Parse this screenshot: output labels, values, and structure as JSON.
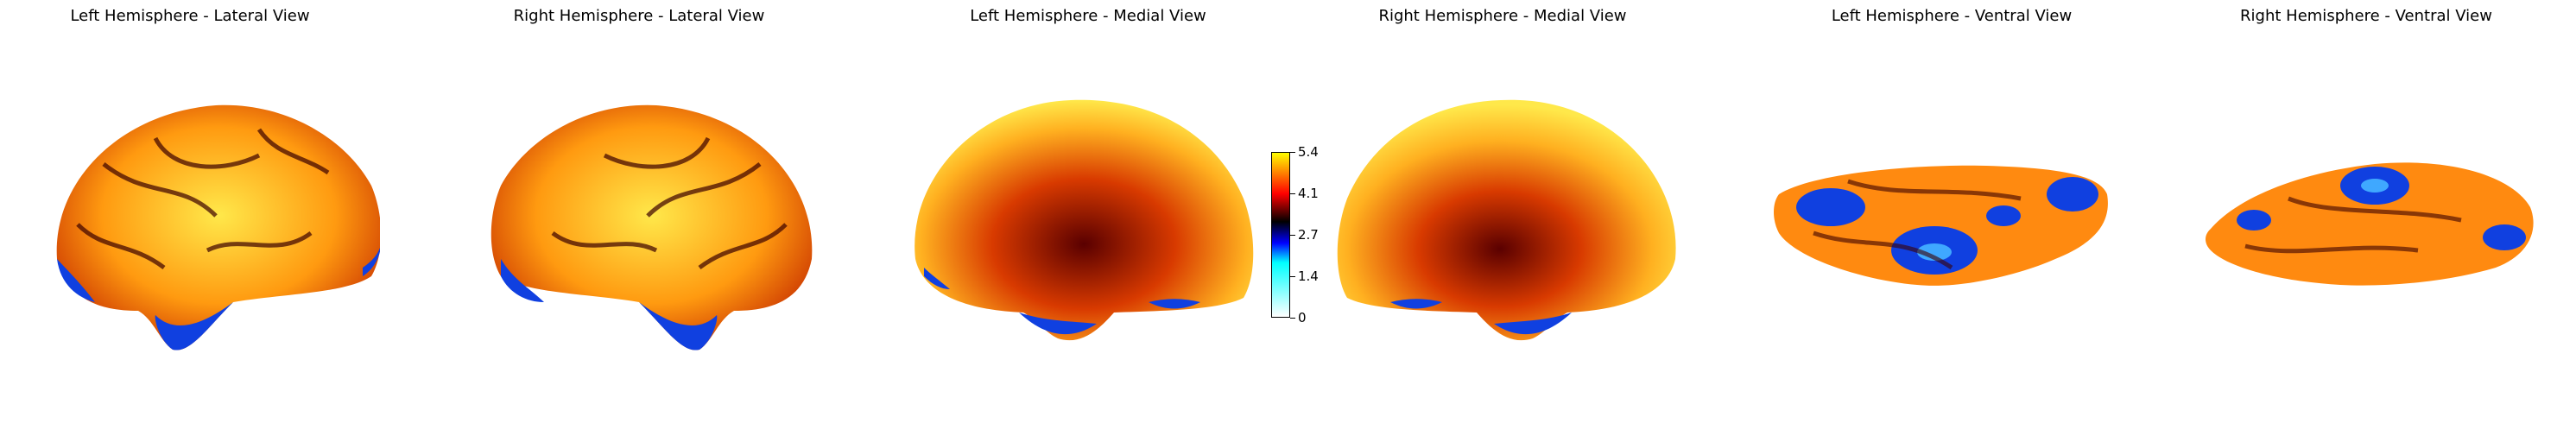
{
  "views": [
    {
      "id": "lh-lateral",
      "title": "Left Hemisphere - Lateral View"
    },
    {
      "id": "rh-lateral",
      "title": "Right Hemisphere - Lateral View"
    },
    {
      "id": "lh-medial",
      "title": "Left Hemisphere - Medial View"
    },
    {
      "id": "rh-medial",
      "title": "Right Hemisphere - Medial View"
    },
    {
      "id": "lh-ventral",
      "title": "Left Hemisphere - Ventral View"
    },
    {
      "id": "rh-ventral",
      "title": "Right Hemisphere - Ventral View"
    }
  ],
  "colorbar": {
    "ticks": [
      "0",
      "1.4",
      "2.7",
      "4.1",
      "5.4"
    ],
    "colormap": [
      "#ffffff",
      "#00ffff",
      "#0000ff",
      "#000000",
      "#ff0000",
      "#ffff00"
    ]
  },
  "colors": {
    "surface_base": "#ff9a10",
    "surface_hot": "#fff04a",
    "surface_dark": "#3a0000",
    "surface_blue": "#1040e0"
  }
}
